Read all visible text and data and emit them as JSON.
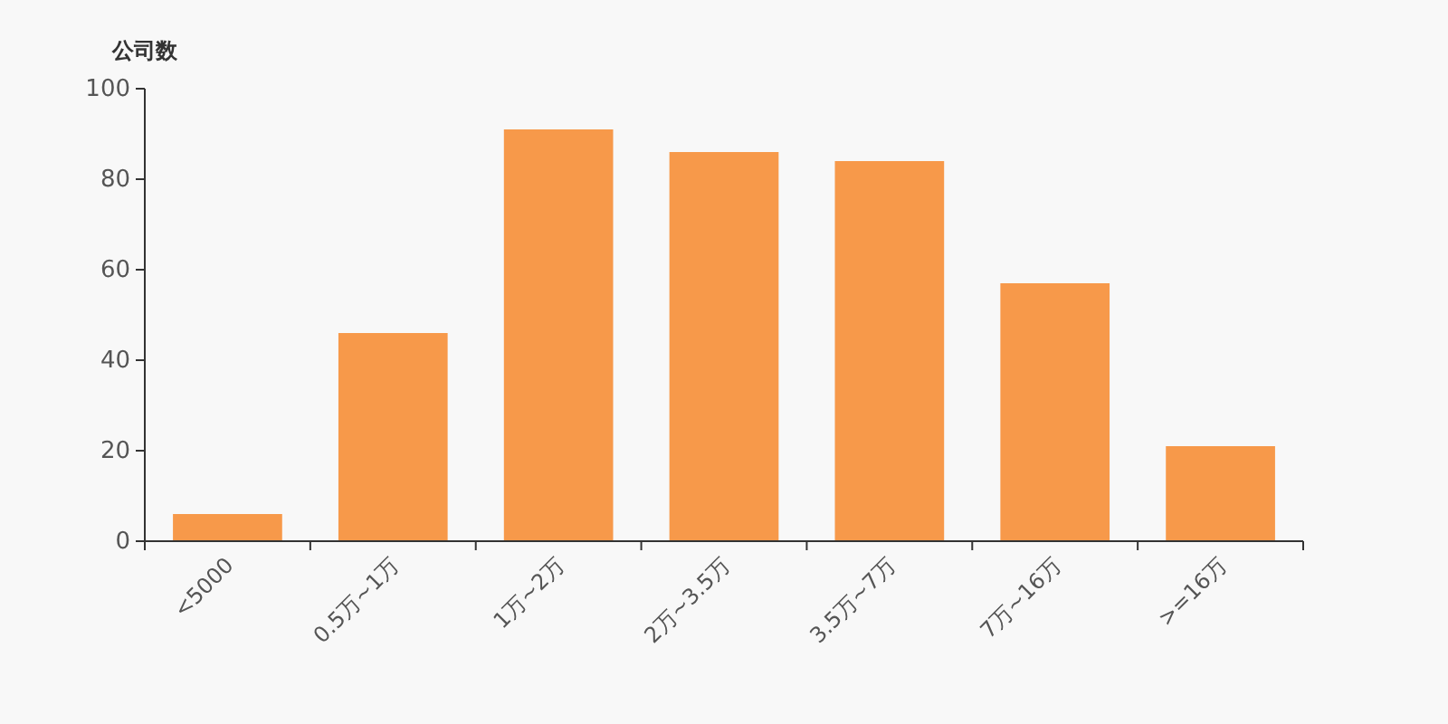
{
  "chart_data": {
    "type": "bar",
    "ylabel": "公司数",
    "categories": [
      "<5000",
      "0.5万~1万",
      "1万~2万",
      "2万~3.5万",
      "3.5万~7万",
      "7万~16万",
      ">=16万"
    ],
    "values": [
      6,
      46,
      91,
      86,
      84,
      57,
      21
    ],
    "color": "#f7994a",
    "ylim": [
      0,
      100
    ],
    "yticks": [
      0,
      20,
      40,
      60,
      80,
      100
    ],
    "grid": false
  }
}
